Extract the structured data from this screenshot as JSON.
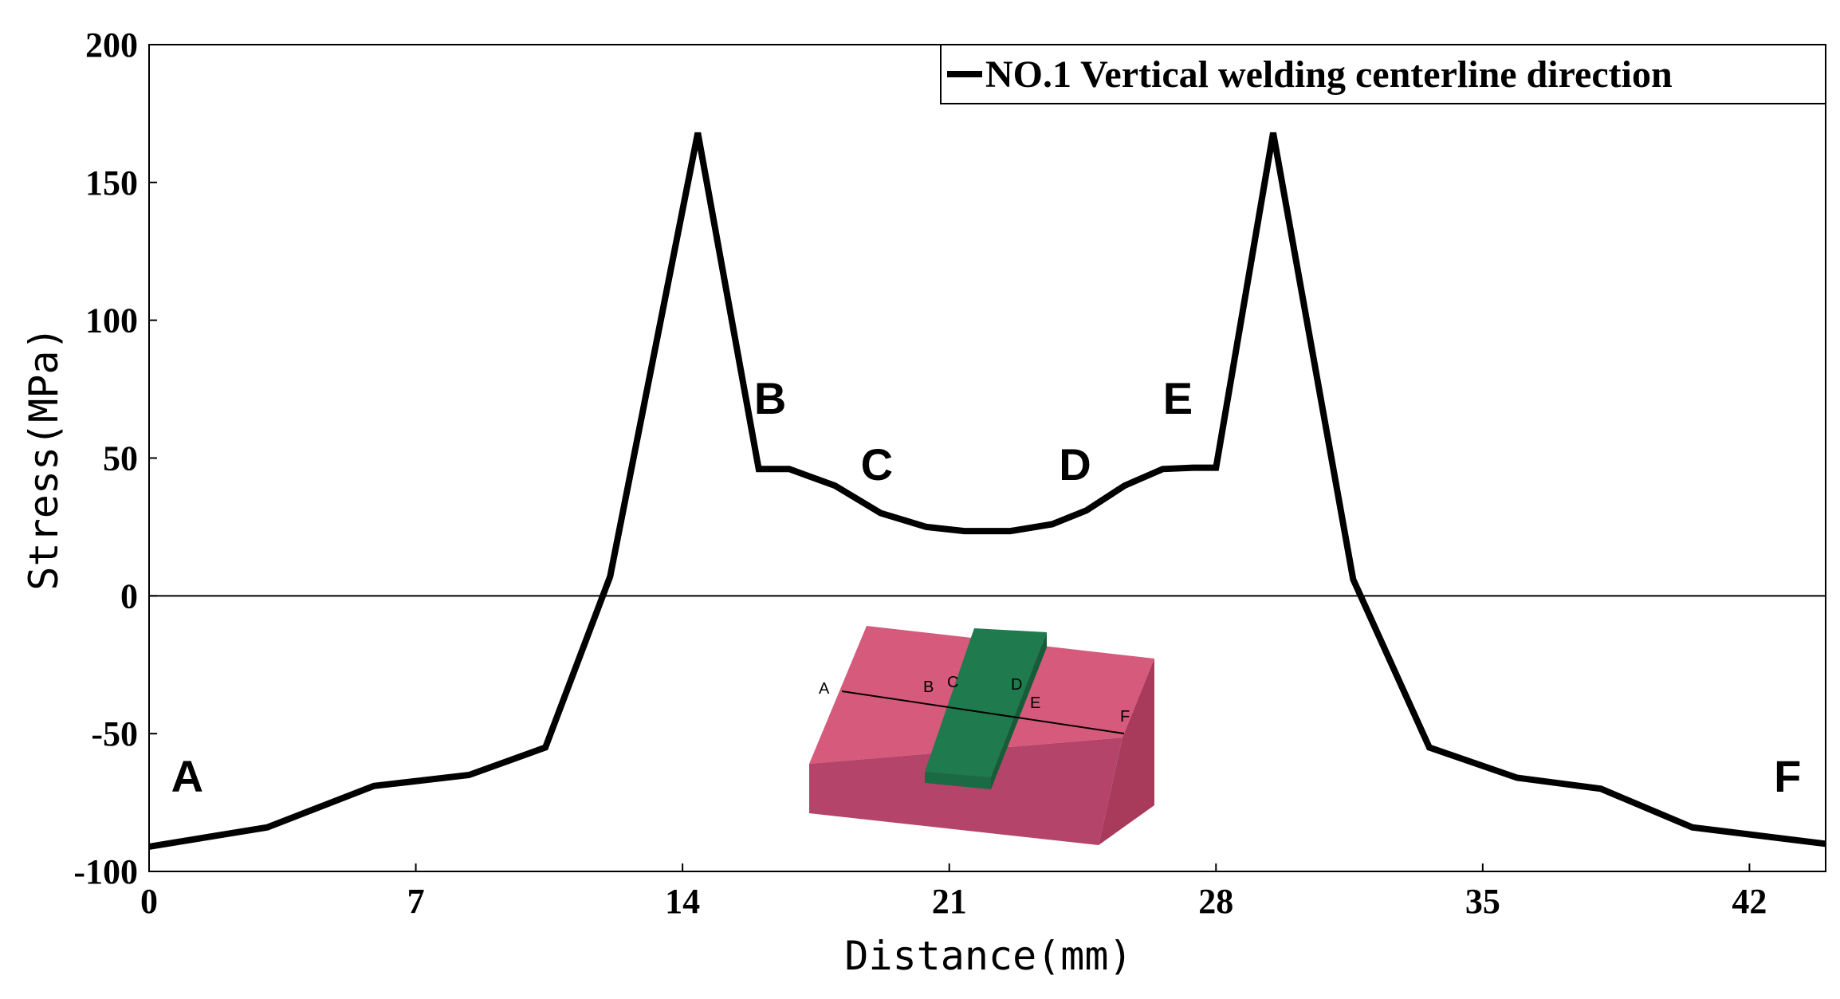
{
  "chart_data": {
    "type": "line",
    "xlabel": "Distance(mm)",
    "ylabel": "Stress(MPa)",
    "xlim": [
      0,
      44
    ],
    "ylim": [
      -100,
      200
    ],
    "xticks": [
      0,
      7,
      14,
      21,
      28,
      35,
      42
    ],
    "yticks": [
      -100,
      -50,
      0,
      50,
      100,
      150,
      200
    ],
    "grid": false,
    "zero_line": true,
    "legend": {
      "position": "top-right"
    },
    "series": [
      {
        "name": "NO.1 Vertical welding centerline direction",
        "color": "#000000",
        "x": [
          0,
          3.1,
          5.9,
          8.4,
          10.4,
          12.1,
          14.4,
          16.0,
          16.8,
          18.0,
          19.2,
          20.4,
          21.4,
          22.6,
          23.7,
          24.6,
          25.6,
          26.6,
          27.4,
          28.0,
          29.5,
          31.6,
          33.6,
          35.9,
          38.1,
          40.5,
          44.0
        ],
        "y": [
          -91,
          -84,
          -69,
          -65,
          -55,
          7,
          168,
          46,
          46,
          40,
          30,
          25,
          23.5,
          23.5,
          26,
          31,
          40,
          46,
          46.5,
          46.5,
          168,
          6,
          -55,
          -66,
          -70,
          -84,
          -90
        ]
      }
    ],
    "annotations": [
      {
        "text": "A",
        "x": 1.0,
        "y": -71
      },
      {
        "text": "B",
        "x": 16.3,
        "y": 66
      },
      {
        "text": "C",
        "x": 19.1,
        "y": 42
      },
      {
        "text": "D",
        "x": 24.3,
        "y": 42
      },
      {
        "text": "E",
        "x": 27.0,
        "y": 66
      },
      {
        "text": "F",
        "x": 43.0,
        "y": -71
      }
    ]
  },
  "inset": {
    "labels": [
      "A",
      "B",
      "C",
      "D",
      "E",
      "F"
    ],
    "colors": {
      "plate": "#d65a7c",
      "plate_side": "#a83a5c",
      "weld": "#1f7a4e",
      "weld_side": "#155c39"
    }
  }
}
